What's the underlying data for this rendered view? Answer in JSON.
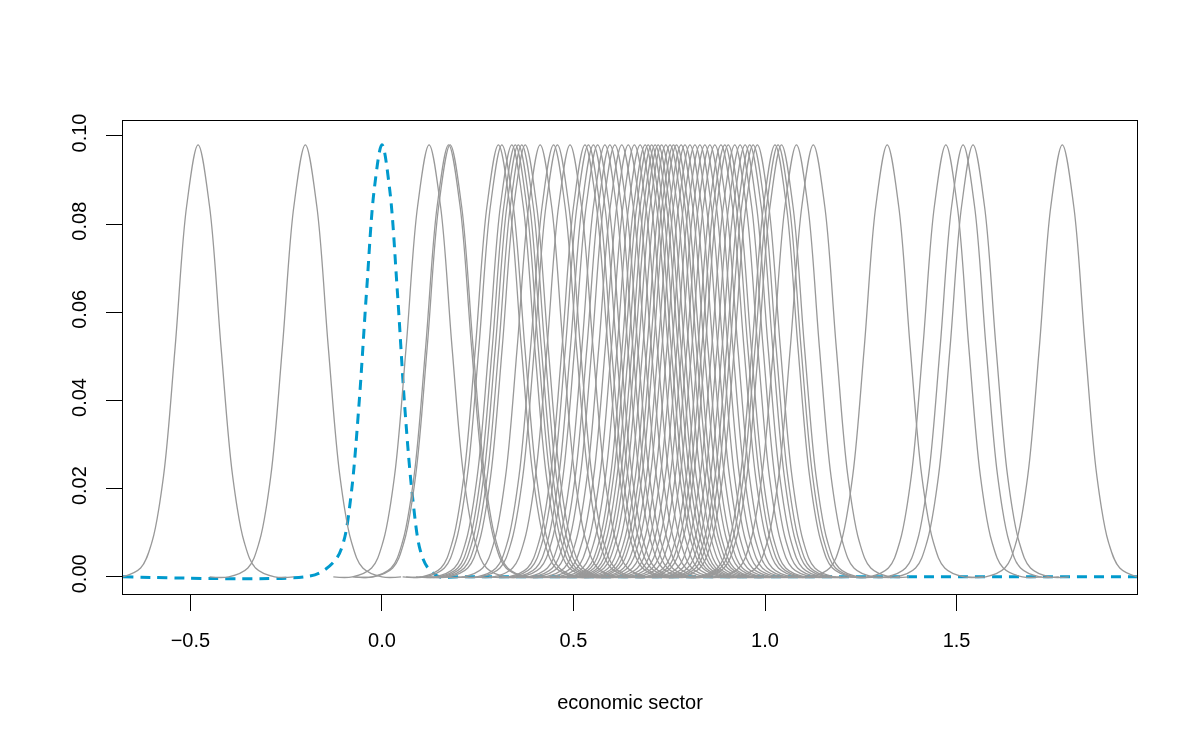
{
  "chart_data": {
    "type": "line",
    "xlabel": "economic sector",
    "line_style": "solid",
    "xlim": [
      -0.676,
      1.971
    ],
    "ylim": [
      -0.0039,
      0.1034
    ],
    "xticks": [
      {
        "value": -0.5,
        "label": "−0.5"
      },
      {
        "value": 0,
        "label": "0.0"
      },
      0.5,
      {
        "value": 1,
        "label": "1.0"
      },
      1.5
    ],
    "yticks": [
      {
        "value": 0,
        "label": "0.00"
      },
      0.02,
      0.04,
      0.06,
      0.08,
      {
        "value": 0.1,
        "label": "0.10"
      }
    ],
    "series": [
      {
        "color": "#009acd",
        "line_style": "dashed",
        "x": [
          -0.676,
          -0.2,
          -0.16,
          -0.12,
          -0.1,
          -0.08,
          -0.06,
          -0.04,
          -0.02,
          0,
          0.02,
          0.04,
          0.06,
          0.08,
          0.1,
          0.12,
          0.15,
          0.2,
          1.971
        ],
        "values": [
          0,
          0,
          0.001,
          0.004,
          0.008,
          0.019,
          0.039,
          0.065,
          0.088,
          0.098,
          0.088,
          0.065,
          0.038,
          0.018,
          0.006,
          0.002,
          0,
          0,
          0
        ]
      },
      {
        "color": "#999999",
        "x": [
          -0.676,
          -0.63,
          -0.6,
          -0.57,
          -0.54,
          -0.51,
          -0.48,
          -0.45,
          -0.42,
          -0.39,
          -0.36,
          -0.33,
          -0.28,
          -0.23
        ],
        "values": [
          0,
          0.002,
          0.008,
          0.023,
          0.052,
          0.084,
          0.098,
          0.084,
          0.052,
          0.023,
          0.008,
          0.002,
          0,
          0
        ]
      },
      {
        "color": "#999999",
        "x": [
          -0.45,
          -0.4,
          -0.35,
          -0.32,
          -0.29,
          -0.26,
          -0.23,
          -0.2,
          -0.17,
          -0.14,
          -0.11,
          -0.08,
          -0.05,
          0,
          0.05
        ],
        "values": [
          0,
          0,
          0.002,
          0.008,
          0.023,
          0.052,
          0.084,
          0.098,
          0.084,
          0.052,
          0.023,
          0.008,
          0.002,
          0,
          0
        ]
      },
      {
        "color": "#999999",
        "x": [
          -0.127,
          -0.077,
          -0.027,
          0.003,
          0.033,
          0.063,
          0.093,
          0.123,
          0.153,
          0.183,
          0.213,
          0.243,
          0.273,
          0.323,
          0.373
        ],
        "values": [
          0,
          0,
          0.002,
          0.008,
          0.023,
          0.052,
          0.084,
          0.098,
          0.084,
          0.052,
          0.023,
          0.008,
          0.002,
          0,
          0
        ]
      },
      {
        "color": "#999999",
        "x": [
          -0.076,
          -0.026,
          0.024,
          0.054,
          0.084,
          0.114,
          0.144,
          0.174,
          0.204,
          0.234,
          0.264,
          0.294,
          0.324,
          0.374,
          0.424
        ],
        "values": [
          0,
          0,
          0.002,
          0.008,
          0.023,
          0.052,
          0.084,
          0.098,
          0.084,
          0.052,
          0.023,
          0.008,
          0.002,
          0,
          0
        ]
      },
      {
        "color": "#999999",
        "x": [
          -0.072,
          -0.022,
          0.028,
          0.058,
          0.088,
          0.118,
          0.148,
          0.178,
          0.208,
          0.238,
          0.268,
          0.298,
          0.328,
          0.378,
          0.428
        ],
        "values": [
          0,
          0,
          0.002,
          0.008,
          0.023,
          0.052,
          0.084,
          0.098,
          0.084,
          0.052,
          0.023,
          0.008,
          0.002,
          0,
          0
        ]
      },
      {
        "color": "#999999",
        "x": [
          0.054,
          0.104,
          0.154,
          0.184,
          0.214,
          0.244,
          0.274,
          0.304,
          0.334,
          0.364,
          0.394,
          0.424,
          0.454,
          0.504,
          0.554
        ],
        "values": [
          0,
          0,
          0.002,
          0.008,
          0.023,
          0.052,
          0.084,
          0.098,
          0.084,
          0.052,
          0.023,
          0.008,
          0.002,
          0,
          0
        ]
      },
      {
        "color": "#999999",
        "x": [
          0.063,
          0.113,
          0.163,
          0.193,
          0.223,
          0.253,
          0.283,
          0.313,
          0.343,
          0.373,
          0.403,
          0.433,
          0.463,
          0.513,
          0.563
        ],
        "values": [
          0,
          0,
          0.002,
          0.008,
          0.023,
          0.052,
          0.084,
          0.098,
          0.084,
          0.052,
          0.023,
          0.008,
          0.002,
          0,
          0
        ]
      },
      {
        "color": "#999999",
        "x": [
          0.089,
          0.139,
          0.189,
          0.219,
          0.249,
          0.279,
          0.309,
          0.339,
          0.369,
          0.399,
          0.429,
          0.459,
          0.489,
          0.539,
          0.589
        ],
        "values": [
          0,
          0,
          0.002,
          0.008,
          0.023,
          0.052,
          0.084,
          0.098,
          0.084,
          0.052,
          0.023,
          0.008,
          0.002,
          0,
          0
        ]
      },
      {
        "color": "#999999",
        "x": [
          0.098,
          0.148,
          0.198,
          0.228,
          0.258,
          0.288,
          0.318,
          0.348,
          0.378,
          0.408,
          0.438,
          0.468,
          0.498,
          0.548,
          0.598
        ],
        "values": [
          0,
          0,
          0.002,
          0.008,
          0.023,
          0.052,
          0.084,
          0.098,
          0.084,
          0.052,
          0.023,
          0.008,
          0.002,
          0,
          0
        ]
      },
      {
        "color": "#999999",
        "x": [
          0.106,
          0.156,
          0.206,
          0.236,
          0.266,
          0.296,
          0.326,
          0.356,
          0.386,
          0.416,
          0.446,
          0.476,
          0.506,
          0.556,
          0.606
        ],
        "values": [
          0,
          0,
          0.002,
          0.008,
          0.023,
          0.052,
          0.084,
          0.098,
          0.084,
          0.052,
          0.023,
          0.008,
          0.002,
          0,
          0
        ]
      },
      {
        "color": "#999999",
        "x": [
          0.115,
          0.165,
          0.215,
          0.245,
          0.275,
          0.305,
          0.335,
          0.365,
          0.395,
          0.425,
          0.455,
          0.485,
          0.515,
          0.565,
          0.615
        ],
        "values": [
          0,
          0,
          0.002,
          0.008,
          0.023,
          0.052,
          0.084,
          0.098,
          0.084,
          0.052,
          0.023,
          0.008,
          0.002,
          0,
          0
        ]
      },
      {
        "color": "#999999",
        "x": [
          0.124,
          0.174,
          0.224,
          0.254,
          0.284,
          0.314,
          0.344,
          0.374,
          0.404,
          0.434,
          0.464,
          0.494,
          0.524,
          0.574,
          0.624
        ],
        "values": [
          0,
          0,
          0.002,
          0.008,
          0.023,
          0.052,
          0.084,
          0.098,
          0.084,
          0.052,
          0.023,
          0.008,
          0.002,
          0,
          0
        ]
      },
      {
        "color": "#999999",
        "x": [
          0.163,
          0.213,
          0.263,
          0.293,
          0.323,
          0.353,
          0.383,
          0.413,
          0.443,
          0.473,
          0.503,
          0.533,
          0.563,
          0.613,
          0.663
        ],
        "values": [
          0,
          0,
          0.002,
          0.008,
          0.023,
          0.052,
          0.084,
          0.098,
          0.084,
          0.052,
          0.023,
          0.008,
          0.002,
          0,
          0
        ]
      },
      {
        "color": "#999999",
        "x": [
          0.198,
          0.248,
          0.298,
          0.328,
          0.358,
          0.388,
          0.418,
          0.448,
          0.478,
          0.508,
          0.538,
          0.568,
          0.598,
          0.648,
          0.698
        ],
        "values": [
          0,
          0,
          0.002,
          0.008,
          0.023,
          0.052,
          0.084,
          0.098,
          0.084,
          0.052,
          0.023,
          0.008,
          0.002,
          0,
          0
        ]
      },
      {
        "color": "#999999",
        "x": [
          0.208,
          0.258,
          0.308,
          0.338,
          0.368,
          0.398,
          0.428,
          0.458,
          0.488,
          0.518,
          0.548,
          0.578,
          0.608,
          0.658,
          0.708
        ],
        "values": [
          0,
          0,
          0.002,
          0.008,
          0.023,
          0.052,
          0.084,
          0.098,
          0.084,
          0.052,
          0.023,
          0.008,
          0.002,
          0,
          0
        ]
      },
      {
        "color": "#999999",
        "x": [
          0.241,
          0.291,
          0.341,
          0.371,
          0.401,
          0.431,
          0.461,
          0.491,
          0.521,
          0.551,
          0.581,
          0.611,
          0.641,
          0.691,
          0.741
        ],
        "values": [
          0,
          0,
          0.002,
          0.008,
          0.023,
          0.052,
          0.084,
          0.098,
          0.084,
          0.052,
          0.023,
          0.008,
          0.002,
          0,
          0
        ]
      },
      {
        "color": "#999999",
        "x": [
          0.28,
          0.33,
          0.38,
          0.41,
          0.44,
          0.47,
          0.5,
          0.53,
          0.56,
          0.59,
          0.62,
          0.65,
          0.68,
          0.73,
          0.78
        ],
        "values": [
          0,
          0,
          0.002,
          0.008,
          0.023,
          0.052,
          0.084,
          0.098,
          0.084,
          0.052,
          0.023,
          0.008,
          0.002,
          0,
          0
        ]
      },
      {
        "color": "#999999",
        "x": [
          0.289,
          0.339,
          0.389,
          0.419,
          0.449,
          0.479,
          0.509,
          0.539,
          0.569,
          0.599,
          0.629,
          0.659,
          0.689,
          0.739,
          0.789
        ],
        "values": [
          0,
          0,
          0.002,
          0.008,
          0.023,
          0.052,
          0.084,
          0.098,
          0.084,
          0.052,
          0.023,
          0.008,
          0.002,
          0,
          0
        ]
      },
      {
        "color": "#999999",
        "x": [
          0.302,
          0.352,
          0.402,
          0.432,
          0.462,
          0.492,
          0.522,
          0.552,
          0.582,
          0.612,
          0.642,
          0.672,
          0.702,
          0.752,
          0.802
        ],
        "values": [
          0,
          0,
          0.002,
          0.008,
          0.023,
          0.052,
          0.084,
          0.098,
          0.084,
          0.052,
          0.023,
          0.008,
          0.002,
          0,
          0
        ]
      },
      {
        "color": "#999999",
        "x": [
          0.313,
          0.363,
          0.413,
          0.443,
          0.473,
          0.503,
          0.533,
          0.563,
          0.593,
          0.623,
          0.653,
          0.683,
          0.713,
          0.763,
          0.813
        ],
        "values": [
          0,
          0,
          0.002,
          0.008,
          0.023,
          0.052,
          0.084,
          0.098,
          0.084,
          0.052,
          0.023,
          0.008,
          0.002,
          0,
          0
        ]
      },
      {
        "color": "#999999",
        "x": [
          0.332,
          0.382,
          0.432,
          0.462,
          0.492,
          0.522,
          0.552,
          0.582,
          0.612,
          0.642,
          0.672,
          0.702,
          0.732,
          0.782,
          0.832
        ],
        "values": [
          0,
          0,
          0.002,
          0.008,
          0.023,
          0.052,
          0.084,
          0.098,
          0.084,
          0.052,
          0.023,
          0.008,
          0.002,
          0,
          0
        ]
      },
      {
        "color": "#999999",
        "x": [
          0.345,
          0.395,
          0.445,
          0.475,
          0.505,
          0.535,
          0.565,
          0.595,
          0.625,
          0.655,
          0.685,
          0.715,
          0.745,
          0.795,
          0.845
        ],
        "values": [
          0,
          0,
          0.002,
          0.008,
          0.023,
          0.052,
          0.084,
          0.098,
          0.084,
          0.052,
          0.023,
          0.008,
          0.002,
          0,
          0
        ]
      },
      {
        "color": "#999999",
        "x": [
          0.358,
          0.408,
          0.458,
          0.488,
          0.518,
          0.548,
          0.578,
          0.608,
          0.638,
          0.668,
          0.698,
          0.728,
          0.758,
          0.808,
          0.858
        ],
        "values": [
          0,
          0,
          0.002,
          0.008,
          0.023,
          0.052,
          0.084,
          0.098,
          0.084,
          0.052,
          0.023,
          0.008,
          0.002,
          0,
          0
        ]
      },
      {
        "color": "#999999",
        "x": [
          0.376,
          0.426,
          0.476,
          0.506,
          0.536,
          0.566,
          0.596,
          0.626,
          0.656,
          0.686,
          0.716,
          0.746,
          0.776,
          0.826,
          0.876
        ],
        "values": [
          0,
          0,
          0.002,
          0.008,
          0.023,
          0.052,
          0.084,
          0.098,
          0.084,
          0.052,
          0.023,
          0.008,
          0.002,
          0,
          0
        ]
      },
      {
        "color": "#999999",
        "x": [
          0.393,
          0.443,
          0.493,
          0.523,
          0.553,
          0.583,
          0.613,
          0.643,
          0.673,
          0.703,
          0.733,
          0.763,
          0.793,
          0.843,
          0.893
        ],
        "values": [
          0,
          0,
          0.002,
          0.008,
          0.023,
          0.052,
          0.084,
          0.098,
          0.084,
          0.052,
          0.023,
          0.008,
          0.002,
          0,
          0
        ]
      },
      {
        "color": "#999999",
        "x": [
          0.409,
          0.459,
          0.509,
          0.539,
          0.569,
          0.599,
          0.629,
          0.659,
          0.689,
          0.719,
          0.749,
          0.779,
          0.809,
          0.859,
          0.909
        ],
        "values": [
          0,
          0,
          0.002,
          0.008,
          0.023,
          0.052,
          0.084,
          0.098,
          0.084,
          0.052,
          0.023,
          0.008,
          0.002,
          0,
          0
        ]
      },
      {
        "color": "#999999",
        "x": [
          0.424,
          0.474,
          0.524,
          0.554,
          0.584,
          0.614,
          0.644,
          0.674,
          0.704,
          0.734,
          0.764,
          0.794,
          0.824,
          0.874,
          0.924
        ],
        "values": [
          0,
          0,
          0.002,
          0.008,
          0.023,
          0.052,
          0.084,
          0.098,
          0.084,
          0.052,
          0.023,
          0.008,
          0.002,
          0,
          0
        ]
      },
      {
        "color": "#999999",
        "x": [
          0.437,
          0.487,
          0.537,
          0.567,
          0.597,
          0.627,
          0.657,
          0.687,
          0.717,
          0.747,
          0.777,
          0.807,
          0.837,
          0.887,
          0.937
        ],
        "values": [
          0,
          0,
          0.002,
          0.008,
          0.023,
          0.052,
          0.084,
          0.098,
          0.084,
          0.052,
          0.023,
          0.008,
          0.002,
          0,
          0
        ]
      },
      {
        "color": "#999999",
        "x": [
          0.445,
          0.495,
          0.545,
          0.575,
          0.605,
          0.635,
          0.665,
          0.695,
          0.725,
          0.755,
          0.785,
          0.815,
          0.845,
          0.895,
          0.945
        ],
        "values": [
          0,
          0,
          0.002,
          0.008,
          0.023,
          0.052,
          0.084,
          0.098,
          0.084,
          0.052,
          0.023,
          0.008,
          0.002,
          0,
          0
        ]
      },
      {
        "color": "#999999",
        "x": [
          0.454,
          0.504,
          0.554,
          0.584,
          0.614,
          0.644,
          0.674,
          0.704,
          0.734,
          0.764,
          0.794,
          0.824,
          0.854,
          0.904,
          0.954
        ],
        "values": [
          0,
          0,
          0.002,
          0.008,
          0.023,
          0.052,
          0.084,
          0.098,
          0.084,
          0.052,
          0.023,
          0.008,
          0.002,
          0,
          0
        ]
      },
      {
        "color": "#999999",
        "x": [
          0.463,
          0.513,
          0.563,
          0.593,
          0.623,
          0.653,
          0.683,
          0.713,
          0.743,
          0.773,
          0.803,
          0.833,
          0.863,
          0.913,
          0.963
        ],
        "values": [
          0,
          0,
          0.002,
          0.008,
          0.023,
          0.052,
          0.084,
          0.098,
          0.084,
          0.052,
          0.023,
          0.008,
          0.002,
          0,
          0
        ]
      },
      {
        "color": "#999999",
        "x": [
          0.471,
          0.521,
          0.571,
          0.601,
          0.631,
          0.661,
          0.691,
          0.721,
          0.751,
          0.781,
          0.811,
          0.841,
          0.871,
          0.921,
          0.971
        ],
        "values": [
          0,
          0,
          0.002,
          0.008,
          0.023,
          0.052,
          0.084,
          0.098,
          0.084,
          0.052,
          0.023,
          0.008,
          0.002,
          0,
          0
        ]
      },
      {
        "color": "#999999",
        "x": [
          0.48,
          0.53,
          0.58,
          0.61,
          0.64,
          0.67,
          0.7,
          0.73,
          0.76,
          0.79,
          0.82,
          0.85,
          0.88,
          0.93,
          0.98
        ],
        "values": [
          0,
          0,
          0.002,
          0.008,
          0.023,
          0.052,
          0.084,
          0.098,
          0.084,
          0.052,
          0.023,
          0.008,
          0.002,
          0,
          0
        ]
      },
      {
        "color": "#999999",
        "x": [
          0.491,
          0.541,
          0.591,
          0.621,
          0.651,
          0.681,
          0.711,
          0.741,
          0.771,
          0.801,
          0.831,
          0.861,
          0.891,
          0.941,
          0.991
        ],
        "values": [
          0,
          0,
          0.002,
          0.008,
          0.023,
          0.052,
          0.084,
          0.098,
          0.084,
          0.052,
          0.023,
          0.008,
          0.002,
          0,
          0
        ]
      },
      {
        "color": "#999999",
        "x": [
          0.502,
          0.552,
          0.602,
          0.632,
          0.662,
          0.692,
          0.722,
          0.752,
          0.782,
          0.812,
          0.842,
          0.872,
          0.902,
          0.952,
          1.002
        ],
        "values": [
          0,
          0,
          0.002,
          0.008,
          0.023,
          0.052,
          0.084,
          0.098,
          0.084,
          0.052,
          0.023,
          0.008,
          0.002,
          0,
          0
        ]
      },
      {
        "color": "#999999",
        "x": [
          0.511,
          0.561,
          0.611,
          0.641,
          0.671,
          0.701,
          0.731,
          0.761,
          0.791,
          0.821,
          0.851,
          0.881,
          0.911,
          0.961,
          1.011
        ],
        "values": [
          0,
          0,
          0.002,
          0.008,
          0.023,
          0.052,
          0.084,
          0.098,
          0.084,
          0.052,
          0.023,
          0.008,
          0.002,
          0,
          0
        ]
      },
      {
        "color": "#999999",
        "x": [
          0.519,
          0.569,
          0.619,
          0.649,
          0.679,
          0.709,
          0.739,
          0.769,
          0.799,
          0.829,
          0.859,
          0.889,
          0.919,
          0.969,
          1.019
        ],
        "values": [
          0,
          0,
          0.002,
          0.008,
          0.023,
          0.052,
          0.084,
          0.098,
          0.084,
          0.052,
          0.023,
          0.008,
          0.002,
          0,
          0
        ]
      },
      {
        "color": "#999999",
        "x": [
          0.531,
          0.581,
          0.631,
          0.661,
          0.691,
          0.721,
          0.751,
          0.781,
          0.811,
          0.841,
          0.871,
          0.901,
          0.931,
          0.981,
          1.031
        ],
        "values": [
          0,
          0,
          0.002,
          0.008,
          0.023,
          0.052,
          0.084,
          0.098,
          0.084,
          0.052,
          0.023,
          0.008,
          0.002,
          0,
          0
        ]
      },
      {
        "color": "#999999",
        "x": [
          0.541,
          0.591,
          0.641,
          0.671,
          0.701,
          0.731,
          0.761,
          0.791,
          0.821,
          0.851,
          0.881,
          0.911,
          0.941,
          0.991,
          1.041
        ],
        "values": [
          0,
          0,
          0.002,
          0.008,
          0.023,
          0.052,
          0.084,
          0.098,
          0.084,
          0.052,
          0.023,
          0.008,
          0.002,
          0,
          0
        ]
      },
      {
        "color": "#999999",
        "x": [
          0.554,
          0.604,
          0.654,
          0.684,
          0.714,
          0.744,
          0.774,
          0.804,
          0.834,
          0.864,
          0.894,
          0.924,
          0.954,
          1.004,
          1.054
        ],
        "values": [
          0,
          0,
          0.002,
          0.008,
          0.023,
          0.052,
          0.084,
          0.098,
          0.084,
          0.052,
          0.023,
          0.008,
          0.002,
          0,
          0
        ]
      },
      {
        "color": "#999999",
        "x": [
          0.567,
          0.617,
          0.667,
          0.697,
          0.727,
          0.757,
          0.787,
          0.817,
          0.847,
          0.877,
          0.907,
          0.937,
          0.967,
          1.017,
          1.067
        ],
        "values": [
          0,
          0,
          0.002,
          0.008,
          0.023,
          0.052,
          0.084,
          0.098,
          0.084,
          0.052,
          0.023,
          0.008,
          0.002,
          0,
          0
        ]
      },
      {
        "color": "#999999",
        "x": [
          0.58,
          0.63,
          0.68,
          0.71,
          0.74,
          0.77,
          0.8,
          0.83,
          0.86,
          0.89,
          0.92,
          0.95,
          0.98,
          1.03,
          1.08
        ],
        "values": [
          0,
          0,
          0.002,
          0.008,
          0.023,
          0.052,
          0.084,
          0.098,
          0.084,
          0.052,
          0.023,
          0.008,
          0.002,
          0,
          0
        ]
      },
      {
        "color": "#999999",
        "x": [
          0.593,
          0.643,
          0.693,
          0.723,
          0.753,
          0.783,
          0.813,
          0.843,
          0.873,
          0.903,
          0.933,
          0.963,
          0.993,
          1.043,
          1.093
        ],
        "values": [
          0,
          0,
          0.002,
          0.008,
          0.023,
          0.052,
          0.084,
          0.098,
          0.084,
          0.052,
          0.023,
          0.008,
          0.002,
          0,
          0
        ]
      },
      {
        "color": "#999999",
        "x": [
          0.606,
          0.656,
          0.706,
          0.736,
          0.766,
          0.796,
          0.826,
          0.856,
          0.886,
          0.916,
          0.946,
          0.976,
          1.006,
          1.056,
          1.106
        ],
        "values": [
          0,
          0,
          0.002,
          0.008,
          0.023,
          0.052,
          0.084,
          0.098,
          0.084,
          0.052,
          0.023,
          0.008,
          0.002,
          0,
          0
        ]
      },
      {
        "color": "#999999",
        "x": [
          0.619,
          0.669,
          0.719,
          0.749,
          0.779,
          0.809,
          0.839,
          0.869,
          0.899,
          0.929,
          0.959,
          0.989,
          1.019,
          1.069,
          1.119
        ],
        "values": [
          0,
          0,
          0.002,
          0.008,
          0.023,
          0.052,
          0.084,
          0.098,
          0.084,
          0.052,
          0.023,
          0.008,
          0.002,
          0,
          0
        ]
      },
      {
        "color": "#999999",
        "x": [
          0.635,
          0.685,
          0.735,
          0.765,
          0.795,
          0.825,
          0.855,
          0.885,
          0.915,
          0.945,
          0.975,
          1.005,
          1.035,
          1.085,
          1.135
        ],
        "values": [
          0,
          0,
          0.002,
          0.008,
          0.023,
          0.052,
          0.084,
          0.098,
          0.084,
          0.052,
          0.023,
          0.008,
          0.002,
          0,
          0
        ]
      },
      {
        "color": "#999999",
        "x": [
          0.645,
          0.695,
          0.745,
          0.775,
          0.805,
          0.835,
          0.865,
          0.895,
          0.925,
          0.955,
          0.985,
          1.015,
          1.045,
          1.095,
          1.145
        ],
        "values": [
          0,
          0,
          0.002,
          0.008,
          0.023,
          0.052,
          0.084,
          0.098,
          0.084,
          0.052,
          0.023,
          0.008,
          0.002,
          0,
          0
        ]
      },
      {
        "color": "#999999",
        "x": [
          0.654,
          0.704,
          0.754,
          0.784,
          0.814,
          0.844,
          0.874,
          0.904,
          0.934,
          0.964,
          0.994,
          1.024,
          1.054,
          1.104,
          1.154
        ],
        "values": [
          0,
          0,
          0.002,
          0.008,
          0.023,
          0.052,
          0.084,
          0.098,
          0.084,
          0.052,
          0.023,
          0.008,
          0.002,
          0,
          0
        ]
      },
      {
        "color": "#999999",
        "x": [
          0.671,
          0.721,
          0.771,
          0.801,
          0.831,
          0.861,
          0.891,
          0.921,
          0.951,
          0.981,
          1.011,
          1.041,
          1.071,
          1.121,
          1.171
        ],
        "values": [
          0,
          0,
          0.002,
          0.008,
          0.023,
          0.052,
          0.084,
          0.098,
          0.084,
          0.052,
          0.023,
          0.008,
          0.002,
          0,
          0
        ]
      },
      {
        "color": "#999999",
        "x": [
          0.685,
          0.735,
          0.785,
          0.815,
          0.845,
          0.875,
          0.905,
          0.935,
          0.965,
          0.995,
          1.025,
          1.055,
          1.085,
          1.135,
          1.185
        ],
        "values": [
          0,
          0,
          0.002,
          0.008,
          0.023,
          0.052,
          0.084,
          0.098,
          0.084,
          0.052,
          0.023,
          0.008,
          0.002,
          0,
          0
        ]
      },
      {
        "color": "#999999",
        "x": [
          0.698,
          0.748,
          0.798,
          0.828,
          0.858,
          0.888,
          0.918,
          0.948,
          0.978,
          1.008,
          1.038,
          1.068,
          1.098,
          1.148,
          1.198
        ],
        "values": [
          0,
          0,
          0.002,
          0.008,
          0.023,
          0.052,
          0.084,
          0.098,
          0.084,
          0.052,
          0.023,
          0.008,
          0.002,
          0,
          0
        ]
      },
      {
        "color": "#999999",
        "x": [
          0.71,
          0.76,
          0.81,
          0.84,
          0.87,
          0.9,
          0.93,
          0.96,
          0.99,
          1.02,
          1.05,
          1.08,
          1.11,
          1.16,
          1.21
        ],
        "values": [
          0,
          0,
          0.002,
          0.008,
          0.023,
          0.052,
          0.084,
          0.098,
          0.084,
          0.052,
          0.023,
          0.008,
          0.002,
          0,
          0
        ]
      },
      {
        "color": "#999999",
        "x": [
          0.719,
          0.769,
          0.819,
          0.849,
          0.879,
          0.909,
          0.939,
          0.969,
          0.999,
          1.029,
          1.059,
          1.089,
          1.119,
          1.169,
          1.219
        ],
        "values": [
          0,
          0,
          0.002,
          0.008,
          0.023,
          0.052,
          0.084,
          0.098,
          0.084,
          0.052,
          0.023,
          0.008,
          0.002,
          0,
          0
        ]
      },
      {
        "color": "#999999",
        "x": [
          0.73,
          0.78,
          0.83,
          0.86,
          0.89,
          0.92,
          0.95,
          0.98,
          1.01,
          1.04,
          1.07,
          1.1,
          1.13,
          1.18,
          1.23
        ],
        "values": [
          0,
          0,
          0.002,
          0.008,
          0.023,
          0.052,
          0.084,
          0.098,
          0.084,
          0.052,
          0.023,
          0.008,
          0.002,
          0,
          0
        ]
      },
      {
        "color": "#999999",
        "x": [
          0.776,
          0.826,
          0.876,
          0.906,
          0.936,
          0.966,
          0.996,
          1.026,
          1.056,
          1.086,
          1.116,
          1.146,
          1.176,
          1.226,
          1.276
        ],
        "values": [
          0,
          0,
          0.002,
          0.008,
          0.023,
          0.052,
          0.084,
          0.098,
          0.084,
          0.052,
          0.023,
          0.008,
          0.002,
          0,
          0
        ]
      },
      {
        "color": "#999999",
        "x": [
          0.784,
          0.834,
          0.884,
          0.914,
          0.944,
          0.974,
          1.004,
          1.034,
          1.064,
          1.094,
          1.124,
          1.154,
          1.184,
          1.234,
          1.284
        ],
        "values": [
          0,
          0,
          0.002,
          0.008,
          0.023,
          0.052,
          0.084,
          0.098,
          0.084,
          0.052,
          0.023,
          0.008,
          0.002,
          0,
          0
        ]
      },
      {
        "color": "#999999",
        "x": [
          0.793,
          0.843,
          0.893,
          0.923,
          0.953,
          0.983,
          1.013,
          1.043,
          1.073,
          1.103,
          1.133,
          1.163,
          1.193,
          1.243,
          1.293
        ],
        "values": [
          0,
          0,
          0.002,
          0.008,
          0.023,
          0.052,
          0.084,
          0.098,
          0.084,
          0.052,
          0.023,
          0.008,
          0.002,
          0,
          0
        ]
      },
      {
        "color": "#999999",
        "x": [
          0.832,
          0.882,
          0.932,
          0.962,
          0.992,
          1.022,
          1.052,
          1.082,
          1.112,
          1.142,
          1.172,
          1.202,
          1.232,
          1.282,
          1.332
        ],
        "values": [
          0,
          0,
          0.002,
          0.008,
          0.023,
          0.052,
          0.084,
          0.098,
          0.084,
          0.052,
          0.023,
          0.008,
          0.002,
          0,
          0
        ]
      },
      {
        "color": "#999999",
        "x": [
          0.876,
          0.926,
          0.976,
          1.006,
          1.036,
          1.066,
          1.096,
          1.126,
          1.156,
          1.186,
          1.216,
          1.246,
          1.276,
          1.326,
          1.376
        ],
        "values": [
          0,
          0,
          0.002,
          0.008,
          0.023,
          0.052,
          0.084,
          0.098,
          0.084,
          0.052,
          0.023,
          0.008,
          0.002,
          0,
          0
        ]
      },
      {
        "color": "#999999",
        "x": [
          1.069,
          1.119,
          1.169,
          1.199,
          1.229,
          1.259,
          1.289,
          1.319,
          1.349,
          1.379,
          1.409,
          1.439,
          1.469,
          1.519,
          1.569
        ],
        "values": [
          0,
          0,
          0.002,
          0.008,
          0.023,
          0.052,
          0.084,
          0.098,
          0.084,
          0.052,
          0.023,
          0.008,
          0.002,
          0,
          0
        ]
      },
      {
        "color": "#999999",
        "x": [
          1.222,
          1.272,
          1.322,
          1.352,
          1.382,
          1.412,
          1.442,
          1.472,
          1.502,
          1.532,
          1.562,
          1.592,
          1.622,
          1.672,
          1.722
        ],
        "values": [
          0,
          0,
          0.002,
          0.008,
          0.023,
          0.052,
          0.084,
          0.098,
          0.084,
          0.052,
          0.023,
          0.008,
          0.002,
          0,
          0
        ]
      },
      {
        "color": "#999999",
        "x": [
          1.267,
          1.317,
          1.367,
          1.397,
          1.427,
          1.457,
          1.487,
          1.517,
          1.547,
          1.577,
          1.607,
          1.637,
          1.667,
          1.717,
          1.767
        ],
        "values": [
          0,
          0,
          0.002,
          0.008,
          0.023,
          0.052,
          0.084,
          0.098,
          0.084,
          0.052,
          0.023,
          0.008,
          0.002,
          0,
          0
        ]
      },
      {
        "color": "#999999",
        "x": [
          1.293,
          1.343,
          1.393,
          1.423,
          1.453,
          1.483,
          1.513,
          1.543,
          1.573,
          1.603,
          1.633,
          1.663,
          1.693,
          1.743,
          1.793
        ],
        "values": [
          0,
          0,
          0.002,
          0.008,
          0.023,
          0.052,
          0.084,
          0.098,
          0.084,
          0.052,
          0.023,
          0.008,
          0.002,
          0,
          0
        ]
      },
      {
        "color": "#999999",
        "x": [
          1.526,
          1.576,
          1.626,
          1.656,
          1.686,
          1.716,
          1.746,
          1.776,
          1.806,
          1.836,
          1.866,
          1.896,
          1.926,
          1.971
        ],
        "values": [
          0,
          0,
          0.002,
          0.008,
          0.023,
          0.052,
          0.084,
          0.098,
          0.084,
          0.052,
          0.023,
          0.008,
          0.002,
          0
        ]
      }
    ]
  }
}
